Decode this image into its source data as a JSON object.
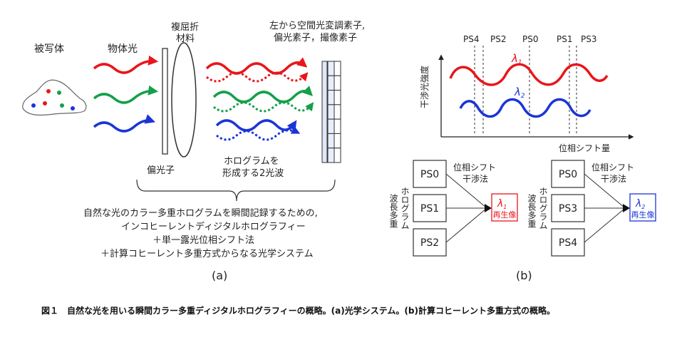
{
  "panel_a": {
    "subject_label": "被写体",
    "object_light_label": "物体光",
    "birefringent_label_1": "複屈折",
    "birefringent_label_2": "材料",
    "devices_label_1": "左から空間光変調素子,",
    "devices_label_2": "偏光素子，撮像素子",
    "polarizer_label": "偏光子",
    "two_waves_label_1": "ホログラムを",
    "two_waves_label_2": "形成する2光波",
    "summary_line_1": "自然な光のカラー多重ホログラムを瞬間記録するための,",
    "summary_line_2": "インコヒーレントディジタルホログラフィー",
    "summary_line_3": "＋単一露光位相シフト法",
    "summary_line_4": "＋計算コヒーレント多重方式からなる光学システム",
    "panel_label": "(a)"
  },
  "panel_b": {
    "ps_labels": [
      "PS4",
      "PS2",
      "PS0",
      "PS1",
      "PS3"
    ],
    "y_axis_label": "干渉光強度",
    "x_axis_label": "位相シフト量",
    "lambda1": "λ1",
    "lambda2": "λ2",
    "lambda1_sym": "λ",
    "lambda1_sub": "1",
    "lambda2_sym": "λ",
    "lambda2_sub": "2",
    "left_group": {
      "boxes": [
        "PS0",
        "PS1",
        "PS2"
      ],
      "method_line_1": "位相シフト",
      "method_line_2": "干渉法",
      "result_sym": "λ",
      "result_sub": "1",
      "result_text": "再生像"
    },
    "right_group": {
      "boxes": [
        "PS0",
        "PS3",
        "PS4"
      ],
      "method_line_1": "位相シフト",
      "method_line_2": "干渉法",
      "result_sym": "λ",
      "result_sub": "2",
      "result_text": "再生像"
    },
    "vertical_label_1": "波長多重",
    "vertical_label_2": "ホログラム",
    "panel_label": "(b)"
  },
  "caption": "図１　自然な光を用いる瞬間カラー多重ディジタルホログラフィーの概略。(a)光学システム。(b)計算コヒーレント多重方式の概略。",
  "colors": {
    "red": "#e8161b",
    "green": "#14a04a",
    "blue": "#1a35d6",
    "line": "#222222"
  }
}
